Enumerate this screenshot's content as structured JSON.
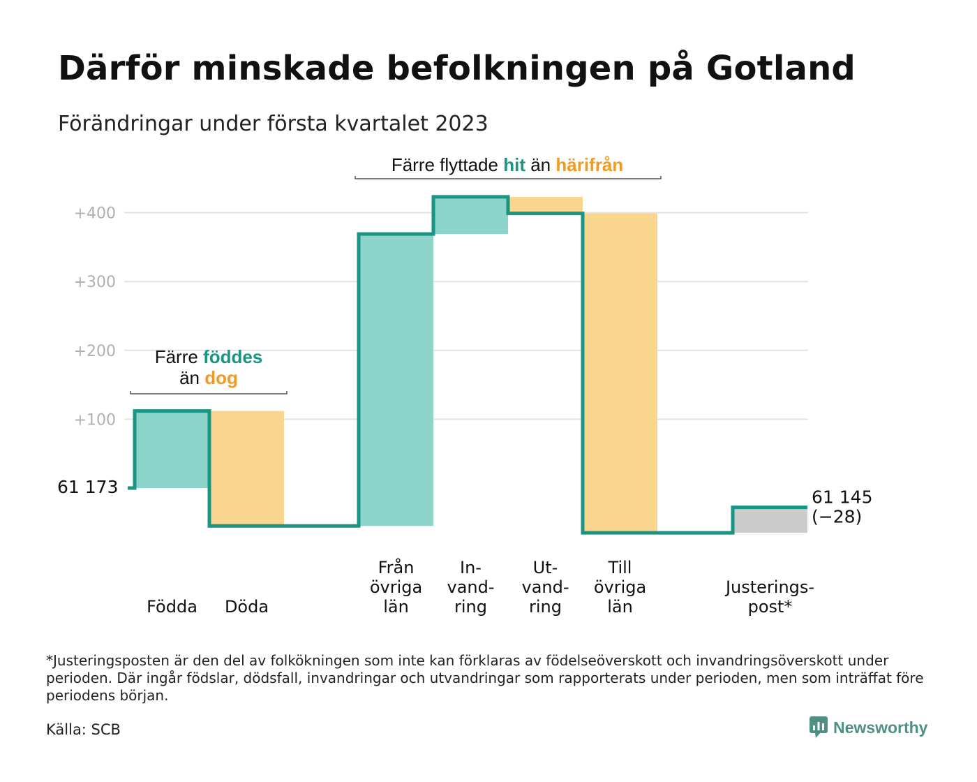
{
  "title": "Därför minskade befolkningen på Gotland",
  "subtitle": "Förändringar under första kvartalet 2023",
  "annotations": {
    "births_deaths": {
      "part1": "Färre ",
      "part2": "föddes",
      "part3": "än ",
      "part4": "dog"
    },
    "migration": {
      "part1": "Färre flyttade ",
      "part2": "hit",
      "part3": " än ",
      "part4": "härifrån"
    }
  },
  "chart_data": {
    "type": "waterfall",
    "y_ticks": [
      "+100",
      "+200",
      "+300",
      "+400"
    ],
    "y_tick_values": [
      100,
      200,
      300,
      400
    ],
    "ylim": [
      -80,
      430
    ],
    "start_label": "61 173",
    "end_label": "61 145",
    "end_change": "(−28)",
    "steps": [
      {
        "label": [
          "Födda"
        ],
        "value": 112,
        "kind": "in"
      },
      {
        "label": [
          "Döda"
        ],
        "value": -167,
        "kind": "out"
      },
      {
        "label": [
          "Från",
          "övriga",
          "län"
        ],
        "value": 424,
        "kind": "in"
      },
      {
        "label": [
          "In-",
          "vand-",
          "ring"
        ],
        "value": 54,
        "kind": "in"
      },
      {
        "label": [
          "Ut-",
          "vand-",
          "ring"
        ],
        "value": -24,
        "kind": "out"
      },
      {
        "label": [
          "Till",
          "övriga",
          "län"
        ],
        "value": -464,
        "kind": "out"
      },
      {
        "label": [
          "Justerings-",
          "post*"
        ],
        "value": 37,
        "kind": "adjust"
      }
    ],
    "grid": true
  },
  "colors": {
    "in": "#8dd5cb",
    "out": "#f9d58e",
    "adjust": "#cccccc",
    "line": "#1a9583",
    "grid": "#e3e3e3",
    "tick": "#b0b0b0",
    "accent_teal": "#1a9583",
    "accent_orange": "#f29a1f"
  },
  "footnote": "*Justeringsposten är den del av folkökningen som inte kan förklaras av födelseöverskott och invandringsöverskott under perioden. Där ingår födslar, dödsfall, invandringar och utvandringar som rapporterats under perioden, men som inträffat före periodens början.",
  "source": "Källa: SCB",
  "brand": {
    "name": "Newsworthy",
    "logo_icon": "newsworthy-logo-icon"
  }
}
